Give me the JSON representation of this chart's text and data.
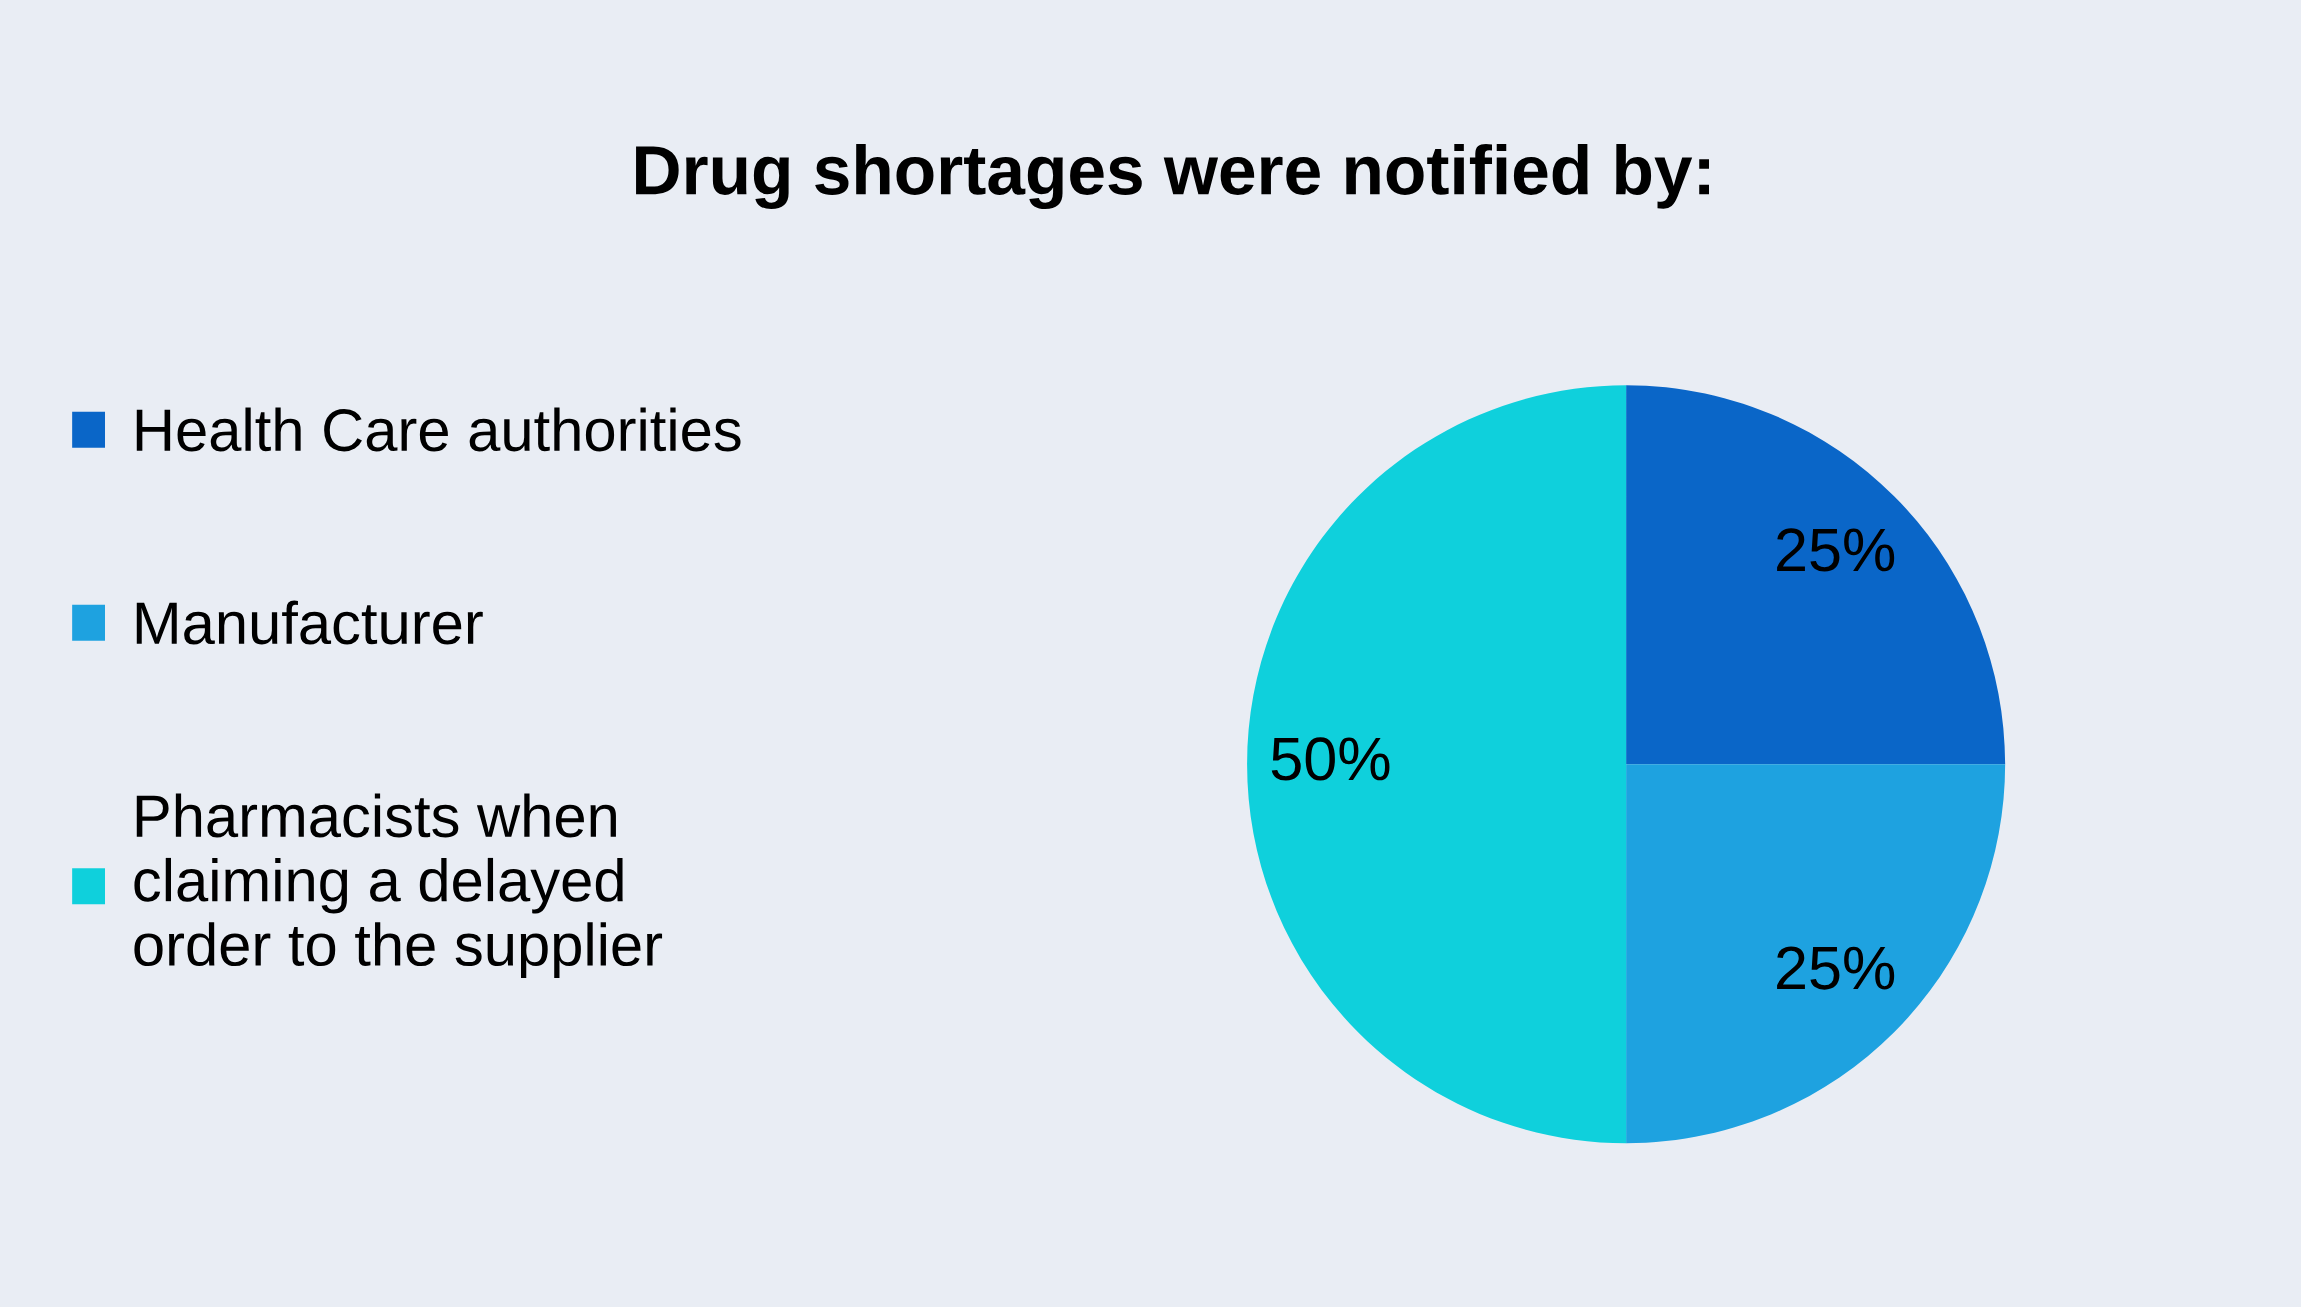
{
  "chart_data": {
    "type": "pie",
    "title": "Drug shortages were notified by:",
    "categories": [
      "Health Care authorities",
      "Manufacturer",
      "Pharmacists when\nclaiming a delayed\norder to the supplier"
    ],
    "values": [
      25,
      25,
      50
    ],
    "colors": [
      "#0a66c8",
      "#1ea2e0",
      "#0fd0dc"
    ],
    "value_labels": [
      "25%",
      "25%",
      "50%"
    ],
    "legend": "left"
  }
}
